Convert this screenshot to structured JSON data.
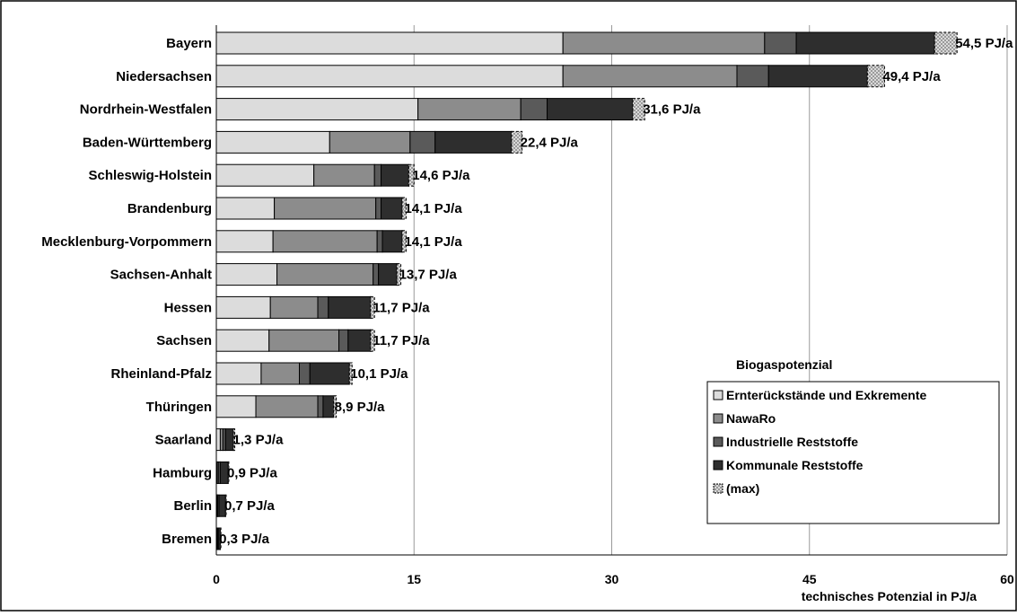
{
  "chart_data": {
    "type": "bar",
    "orientation": "horizontal",
    "stacked": true,
    "title": "",
    "xlabel": "technisches Potenzial in PJ/a",
    "ylabel": "",
    "xlim": [
      0,
      60
    ],
    "xticks": [
      0,
      15,
      30,
      45,
      60
    ],
    "tick_labels": [
      "0",
      "15",
      "30",
      "45",
      "60"
    ],
    "grid": "vertical",
    "categories": [
      "Bayern",
      "Niedersachsen",
      "Nordrhein-Westfalen",
      "Baden-Württemberg",
      "Schleswig-Holstein",
      "Brandenburg",
      "Mecklenburg-Vorpommern",
      "Sachsen-Anhalt",
      "Hessen",
      "Sachsen",
      "Rheinland-Pfalz",
      "Thüringen",
      "Saarland",
      "Hamburg",
      "Berlin",
      "Bremen"
    ],
    "value_labels": [
      "54,5 PJ/a",
      "49,4 PJ/a",
      "31,6 PJ/a",
      "22,4 PJ/a",
      "14,6 PJ/a",
      "14,1 PJ/a",
      "14,1 PJ/a",
      "13,7 PJ/a",
      "11,7 PJ/a",
      "11,7 PJ/a",
      "10,1 PJ/a",
      "8,9 PJ/a",
      "1,3 PJ/a",
      "0,9 PJ/a",
      "0,7 PJ/a",
      "0,3 PJ/a"
    ],
    "series": [
      {
        "name": "Ernterückstände und Exkremente",
        "color": "#dcdcdc",
        "values": [
          26.3,
          26.3,
          15.3,
          8.6,
          7.4,
          4.4,
          4.3,
          4.6,
          4.1,
          4.0,
          3.4,
          3.0,
          0.3,
          0.05,
          0.05,
          0.05
        ]
      },
      {
        "name": "NawaRo",
        "color": "#8c8c8c",
        "values": [
          15.3,
          13.2,
          7.8,
          6.1,
          4.6,
          7.7,
          7.9,
          7.3,
          3.6,
          5.3,
          2.9,
          4.7,
          0.2,
          0.1,
          0.05,
          0.05
        ]
      },
      {
        "name": "Industrielle Reststoffe",
        "color": "#5a5a5a",
        "values": [
          2.4,
          2.4,
          2.0,
          1.9,
          0.5,
          0.4,
          0.4,
          0.4,
          0.8,
          0.7,
          0.8,
          0.4,
          0.2,
          0.15,
          0.1,
          0.05
        ]
      },
      {
        "name": "Kommunale Reststoffe",
        "color": "#2e2e2e",
        "values": [
          10.5,
          7.5,
          6.5,
          5.8,
          2.1,
          1.6,
          1.5,
          1.4,
          3.2,
          1.7,
          3.0,
          0.8,
          0.6,
          0.6,
          0.5,
          0.15
        ]
      },
      {
        "name": "(max)",
        "color": "#c8c8c8",
        "values": [
          1.7,
          1.3,
          0.9,
          0.8,
          0.4,
          0.3,
          0.3,
          0.3,
          0.3,
          0.3,
          0.2,
          0.2,
          0.1,
          0.05,
          0.05,
          0.05
        ]
      }
    ],
    "legend": {
      "title": "Biogaspotenzial",
      "position": "bottom-right"
    }
  }
}
